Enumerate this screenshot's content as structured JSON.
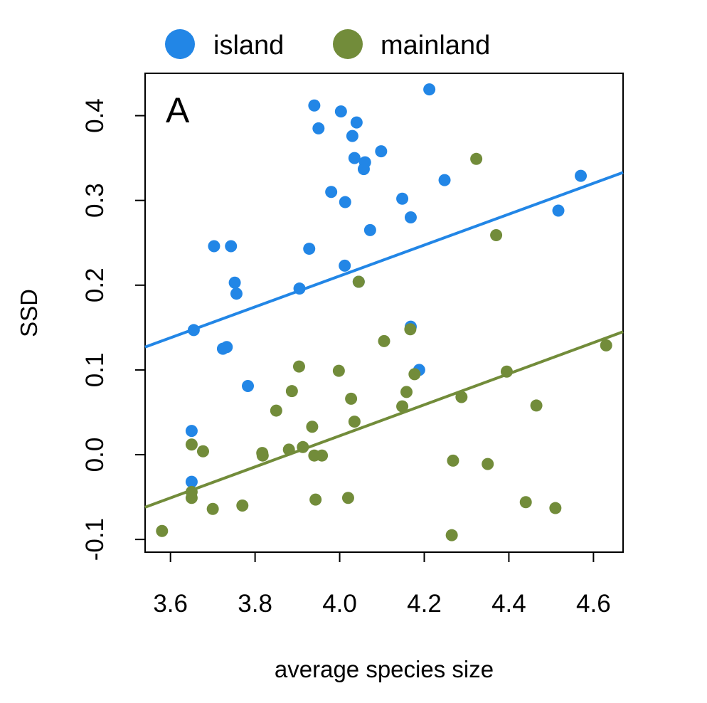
{
  "chart_data": {
    "type": "scatter",
    "panel_label": "A",
    "xlabel": "average species size",
    "ylabel": "SSD",
    "xlim": [
      3.54,
      4.67
    ],
    "ylim": [
      -0.115,
      0.45
    ],
    "xticks": [
      {
        "value": 3.6,
        "label": "3.6"
      },
      {
        "value": 3.8,
        "label": "3.8"
      },
      {
        "value": 4.0,
        "label": "4.0"
      },
      {
        "value": 4.2,
        "label": "4.2"
      },
      {
        "value": 4.4,
        "label": "4.4"
      },
      {
        "value": 4.6,
        "label": "4.6"
      }
    ],
    "yticks": [
      {
        "value": -0.1,
        "label": "-0.1"
      },
      {
        "value": 0.0,
        "label": "0.0"
      },
      {
        "value": 0.1,
        "label": "0.1"
      },
      {
        "value": 0.2,
        "label": "0.2"
      },
      {
        "value": 0.3,
        "label": "0.3"
      },
      {
        "value": 0.4,
        "label": "0.4"
      }
    ],
    "grid": false,
    "legend_position": "top",
    "series": [
      {
        "name": "island",
        "color": "#2286e6",
        "points": [
          [
            3.655,
            0.147
          ],
          [
            3.65,
            0.028
          ],
          [
            3.65,
            -0.032
          ],
          [
            3.703,
            0.246
          ],
          [
            3.724,
            0.125
          ],
          [
            3.733,
            0.127
          ],
          [
            3.743,
            0.246
          ],
          [
            3.752,
            0.203
          ],
          [
            3.756,
            0.19
          ],
          [
            3.783,
            0.081
          ],
          [
            3.905,
            0.196
          ],
          [
            3.928,
            0.243
          ],
          [
            3.94,
            0.412
          ],
          [
            3.95,
            0.385
          ],
          [
            3.98,
            0.31
          ],
          [
            4.003,
            0.405
          ],
          [
            4.012,
            0.223
          ],
          [
            4.013,
            0.298
          ],
          [
            4.03,
            0.376
          ],
          [
            4.035,
            0.35
          ],
          [
            4.04,
            0.392
          ],
          [
            4.045,
            0.204
          ],
          [
            4.057,
            0.337
          ],
          [
            4.06,
            0.345
          ],
          [
            4.072,
            0.265
          ],
          [
            4.098,
            0.358
          ],
          [
            4.148,
            0.302
          ],
          [
            4.168,
            0.28
          ],
          [
            4.168,
            0.151
          ],
          [
            4.188,
            0.1
          ],
          [
            4.212,
            0.431
          ],
          [
            4.248,
            0.324
          ],
          [
            4.517,
            0.288
          ],
          [
            4.57,
            0.329
          ]
        ],
        "fit": {
          "x": [
            3.54,
            4.67
          ],
          "y": [
            0.127,
            0.333
          ]
        }
      },
      {
        "name": "mainland",
        "color": "#728c3a",
        "points": [
          [
            3.58,
            -0.09
          ],
          [
            3.65,
            -0.044
          ],
          [
            3.65,
            -0.051
          ],
          [
            3.65,
            0.012
          ],
          [
            3.677,
            0.004
          ],
          [
            3.7,
            -0.064
          ],
          [
            3.77,
            -0.06
          ],
          [
            3.817,
            0.002
          ],
          [
            3.818,
            -0.001
          ],
          [
            3.85,
            0.052
          ],
          [
            3.88,
            0.006
          ],
          [
            3.887,
            0.075
          ],
          [
            3.904,
            0.104
          ],
          [
            3.913,
            0.009
          ],
          [
            3.935,
            0.033
          ],
          [
            3.94,
            -0.001
          ],
          [
            3.943,
            -0.053
          ],
          [
            3.958,
            -0.001
          ],
          [
            3.998,
            0.099
          ],
          [
            4.02,
            -0.051
          ],
          [
            4.027,
            0.066
          ],
          [
            4.035,
            0.039
          ],
          [
            4.045,
            0.204
          ],
          [
            4.105,
            0.134
          ],
          [
            4.148,
            0.057
          ],
          [
            4.158,
            0.074
          ],
          [
            4.167,
            0.148
          ],
          [
            4.177,
            0.095
          ],
          [
            4.265,
            -0.095
          ],
          [
            4.268,
            -0.007
          ],
          [
            4.288,
            0.068
          ],
          [
            4.323,
            0.349
          ],
          [
            4.35,
            -0.011
          ],
          [
            4.37,
            0.259
          ],
          [
            4.395,
            0.098
          ],
          [
            4.44,
            -0.056
          ],
          [
            4.465,
            0.058
          ],
          [
            4.51,
            -0.063
          ],
          [
            4.63,
            0.129
          ]
        ],
        "fit": {
          "x": [
            3.54,
            4.67
          ],
          "y": [
            -0.062,
            0.145
          ]
        }
      }
    ]
  }
}
